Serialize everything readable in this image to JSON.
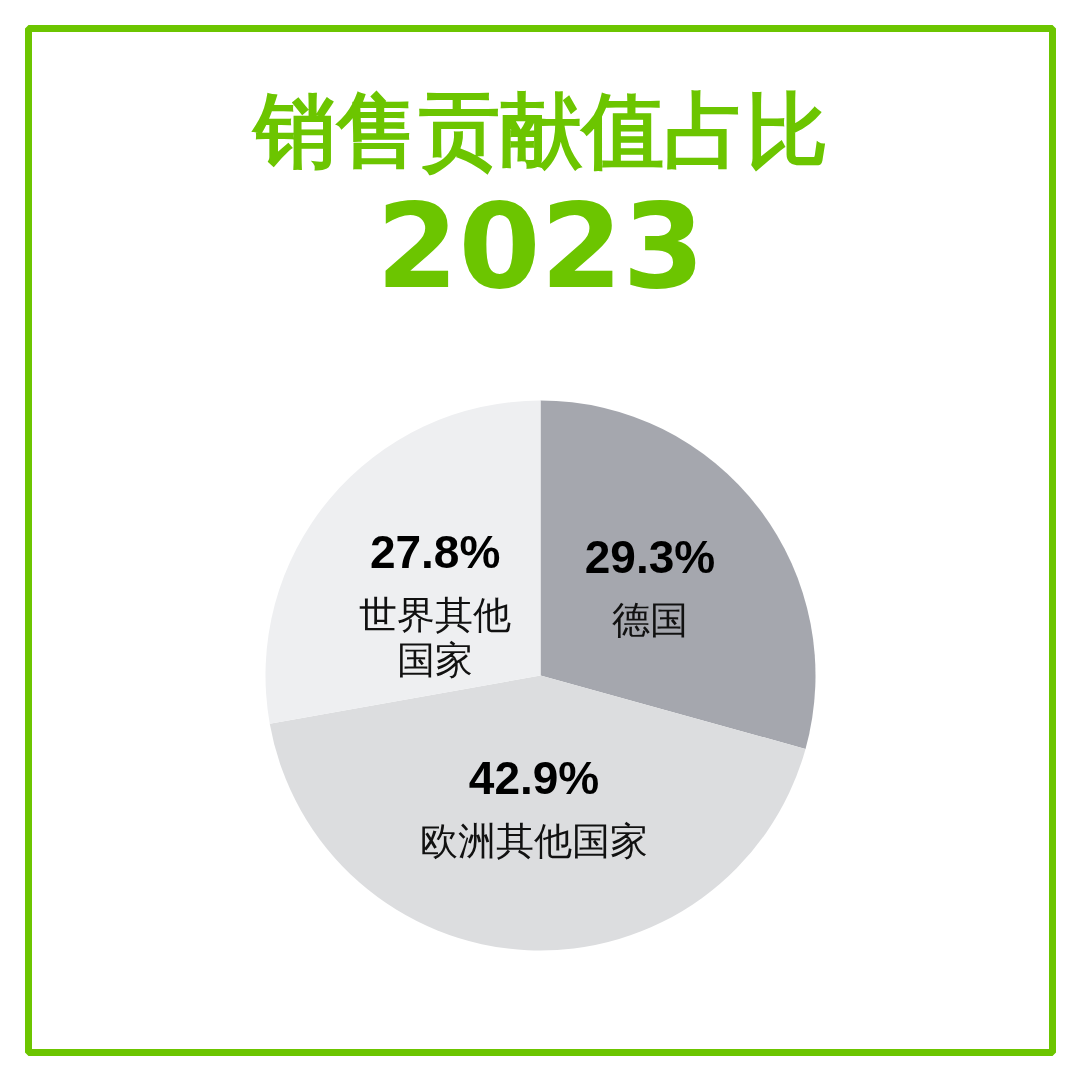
{
  "chart_data": {
    "type": "pie",
    "title": "销售贡献值占比",
    "subtitle": "2023",
    "categories": [
      "德国",
      "欧洲其他国家",
      "世界其他国家"
    ],
    "values": [
      29.3,
      42.9,
      27.8
    ],
    "colors": [
      "#a5a7ae",
      "#dcdddf",
      "#eeeff1"
    ],
    "value_labels": [
      "29.3%",
      "42.9%",
      "27.8%"
    ]
  }
}
